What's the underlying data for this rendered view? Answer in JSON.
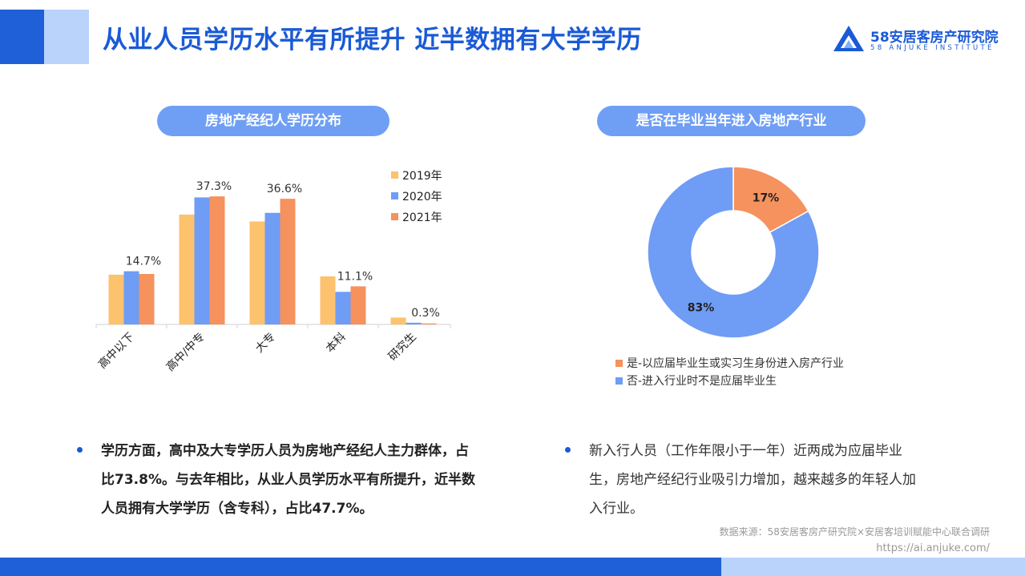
{
  "header": {
    "title": "从业人员学历水平有所提升 近半数拥有大学学历",
    "logo_cn": "58安居客房产研究院",
    "logo_en": "58 ANJUKE INSTITUTE"
  },
  "left_panel": {
    "pill": "房地产经纪人学历分布",
    "bullet": "学历方面，高中及大专学历人员为房地产经纪人主力群体，占比73.8%。与去年相比，从业人员学历水平有所提升，近半数人员拥有大学学历（含专科），占比47.7%。"
  },
  "right_panel": {
    "pill": "是否在毕业当年进入房地产行业",
    "bullet": "新入行人员（工作年限小于一年）近两成为应届毕业生，房地产经纪行业吸引力增加，越来越多的年轻人加入行业。"
  },
  "colors": {
    "brand": "#1a5ad6",
    "y2019": "#fcc26d",
    "y2020": "#6f9cf5",
    "y2021": "#f5925e"
  },
  "chart_data": [
    {
      "type": "bar",
      "categories": [
        "高中以下",
        "高中/中专",
        "大专",
        "本科",
        "研究生"
      ],
      "series": [
        {
          "name": "2019年",
          "values": [
            14.5,
            32.0,
            30.0,
            14.0,
            2.0
          ]
        },
        {
          "name": "2020年",
          "values": [
            15.5,
            37.0,
            32.5,
            9.5,
            0.5
          ]
        },
        {
          "name": "2021年",
          "values": [
            14.7,
            37.3,
            36.6,
            11.1,
            0.3
          ]
        }
      ],
      "data_labels": [
        "14.7%",
        "37.3%",
        "36.6%",
        "11.1%",
        "0.3%"
      ],
      "ylim": [
        0,
        42
      ],
      "legend": "top-right"
    },
    {
      "type": "pie",
      "labels": [
        "是-以应届毕业生或实习生身份进入房产行业",
        "否-进入行业时不是应届毕业生"
      ],
      "values": [
        17,
        83
      ],
      "value_labels": [
        "17%",
        "83%"
      ],
      "colors": [
        "#f5925e",
        "#6f9cf5"
      ],
      "legend": "bottom"
    }
  ],
  "footer": {
    "source": "数据来源：58安居客房产研究院×安居客培训赋能中心联合调研",
    "url": "https://ai.anjuke.com/"
  }
}
